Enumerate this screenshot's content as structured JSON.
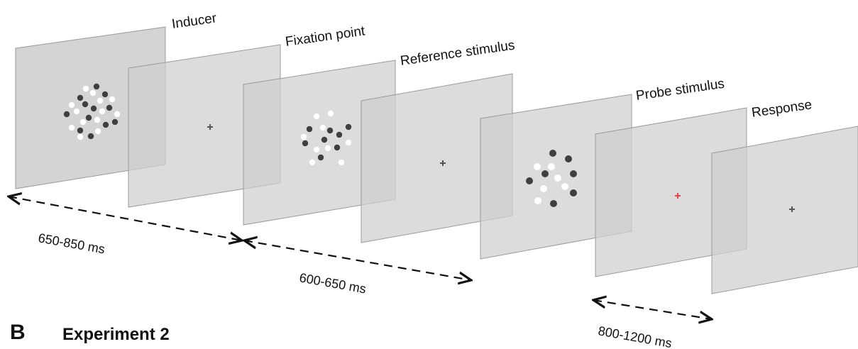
{
  "diagram": {
    "screens": [
      {
        "id": "inducer",
        "label": "Inducer",
        "fixation": null,
        "dots": "inducer"
      },
      {
        "id": "fixation",
        "label": "Fixation point",
        "fixation": "gray",
        "dots": null
      },
      {
        "id": "reference",
        "label": "Reference stimulus",
        "fixation": null,
        "dots": "reference"
      },
      {
        "id": "blank",
        "label": "",
        "fixation": "gray",
        "dots": null
      },
      {
        "id": "probe",
        "label": "Probe stimulus",
        "fixation": null,
        "dots": "probe"
      },
      {
        "id": "response",
        "label": "Response",
        "fixation": "red",
        "dots": null
      },
      {
        "id": "final",
        "label": "",
        "fixation": "gray",
        "dots": null
      }
    ],
    "durations": [
      {
        "id": "d1",
        "label": "650-850 ms"
      },
      {
        "id": "d2",
        "label": "600-650 ms"
      },
      {
        "id": "d3",
        "label": "800-1200 ms"
      }
    ],
    "colors": {
      "panel_fill": "#cfcfcf",
      "panel_stroke": "#9a9a9a",
      "dark_dot": "#3f3f3f",
      "light_dot": "#ffffff",
      "fixation_gray": "#555555",
      "fixation_red": "#e8434b"
    }
  },
  "section": {
    "letter": "B",
    "title": "Experiment 2"
  }
}
